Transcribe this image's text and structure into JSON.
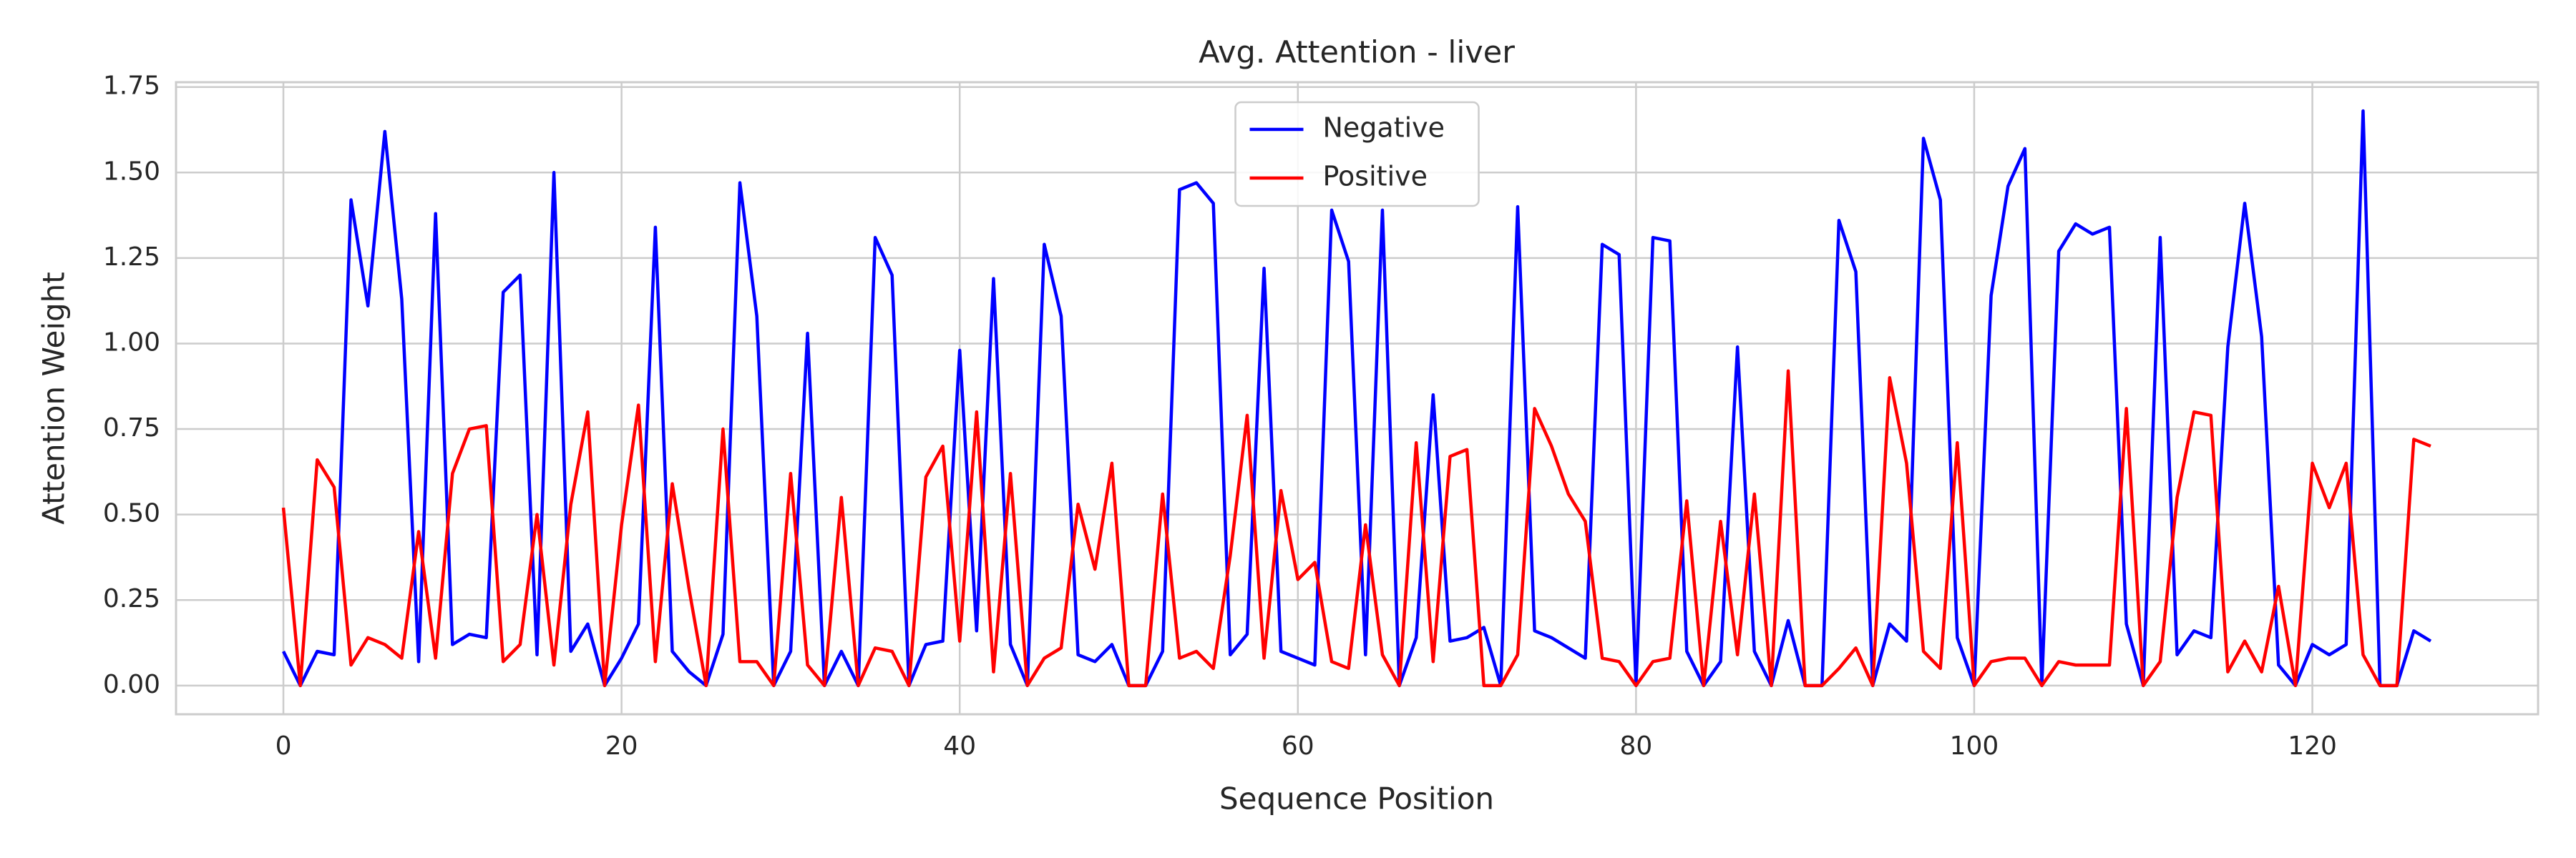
{
  "chart_data": {
    "type": "line",
    "title": "Avg. Attention - liver",
    "xlabel": "Sequence Position",
    "ylabel": "Attention Weight",
    "x": [
      0,
      1,
      2,
      3,
      4,
      5,
      6,
      7,
      8,
      9,
      10,
      11,
      12,
      13,
      14,
      15,
      16,
      17,
      18,
      19,
      20,
      21,
      22,
      23,
      24,
      25,
      26,
      27,
      28,
      29,
      30,
      31,
      32,
      33,
      34,
      35,
      36,
      37,
      38,
      39,
      40,
      41,
      42,
      43,
      44,
      45,
      46,
      47,
      48,
      49,
      50,
      51,
      52,
      53,
      54,
      55,
      56,
      57,
      58,
      59,
      60,
      61,
      62,
      63,
      64,
      65,
      66,
      67,
      68,
      69,
      70,
      71,
      72,
      73,
      74,
      75,
      76,
      77,
      78,
      79,
      80,
      81,
      82,
      83,
      84,
      85,
      86,
      87,
      88,
      89,
      90,
      91,
      92,
      93,
      94,
      95,
      96,
      97,
      98,
      99,
      100,
      101,
      102,
      103,
      104,
      105,
      106,
      107,
      108,
      109,
      110,
      111,
      112,
      113,
      114,
      115,
      116,
      117,
      118,
      119,
      120,
      121,
      122,
      123,
      124,
      125,
      126,
      127
    ],
    "series": [
      {
        "name": "Negative",
        "color": "#0000ff",
        "values": [
          0.1,
          0.0,
          0.1,
          0.09,
          1.42,
          1.11,
          1.62,
          1.13,
          0.07,
          1.38,
          0.12,
          0.15,
          0.14,
          1.15,
          1.2,
          0.09,
          1.5,
          0.1,
          0.18,
          0.0,
          0.08,
          0.18,
          1.34,
          0.1,
          0.04,
          0.0,
          0.15,
          1.47,
          1.08,
          0.0,
          0.1,
          1.03,
          0.0,
          0.1,
          0.0,
          1.31,
          1.2,
          0.0,
          0.12,
          0.13,
          0.98,
          0.16,
          1.19,
          0.12,
          0.0,
          1.29,
          1.08,
          0.09,
          0.07,
          0.12,
          0.0,
          0.0,
          0.1,
          1.45,
          1.47,
          1.41,
          0.09,
          0.15,
          1.22,
          0.1,
          0.08,
          0.06,
          1.39,
          1.24,
          0.09,
          1.39,
          0.0,
          0.14,
          0.85,
          0.13,
          0.14,
          0.17,
          0.0,
          1.4,
          0.16,
          0.14,
          0.11,
          0.08,
          1.29,
          1.26,
          0.0,
          1.31,
          1.3,
          0.1,
          0.0,
          0.07,
          0.99,
          0.1,
          0.0,
          0.19,
          0.0,
          0.0,
          1.36,
          1.21,
          0.0,
          0.18,
          0.13,
          1.6,
          1.42,
          0.14,
          0.0,
          1.14,
          1.46,
          1.57,
          0.0,
          1.27,
          1.35,
          1.32,
          1.34,
          0.18,
          0.0,
          1.31,
          0.09,
          0.16,
          0.14,
          0.99,
          1.41,
          1.02,
          0.06,
          0.0,
          0.12,
          0.09,
          0.12,
          1.68,
          0.0,
          0.0,
          0.16,
          0.13
        ]
      },
      {
        "name": "Positive",
        "color": "#ff0000",
        "values": [
          0.52,
          0.0,
          0.66,
          0.58,
          0.06,
          0.14,
          0.12,
          0.08,
          0.45,
          0.08,
          0.62,
          0.75,
          0.76,
          0.07,
          0.12,
          0.5,
          0.06,
          0.53,
          0.8,
          0.0,
          0.47,
          0.82,
          0.07,
          0.59,
          0.28,
          0.0,
          0.75,
          0.07,
          0.07,
          0.0,
          0.62,
          0.06,
          0.0,
          0.55,
          0.0,
          0.11,
          0.1,
          0.0,
          0.61,
          0.7,
          0.13,
          0.8,
          0.04,
          0.62,
          0.0,
          0.08,
          0.11,
          0.53,
          0.34,
          0.65,
          0.0,
          0.0,
          0.56,
          0.08,
          0.1,
          0.05,
          0.38,
          0.79,
          0.08,
          0.57,
          0.31,
          0.36,
          0.07,
          0.05,
          0.47,
          0.09,
          0.0,
          0.71,
          0.07,
          0.67,
          0.69,
          0.0,
          0.0,
          0.09,
          0.81,
          0.7,
          0.56,
          0.48,
          0.08,
          0.07,
          0.0,
          0.07,
          0.08,
          0.54,
          0.0,
          0.48,
          0.09,
          0.56,
          0.0,
          0.92,
          0.0,
          0.0,
          0.05,
          0.11,
          0.0,
          0.9,
          0.65,
          0.1,
          0.05,
          0.71,
          0.0,
          0.07,
          0.08,
          0.08,
          0.0,
          0.07,
          0.06,
          0.06,
          0.06,
          0.81,
          0.0,
          0.07,
          0.55,
          0.8,
          0.79,
          0.04,
          0.13,
          0.04,
          0.29,
          0.0,
          0.65,
          0.52,
          0.65,
          0.09,
          0.0,
          0.0,
          0.72,
          0.7
        ]
      }
    ],
    "xlim": [
      -6.35,
      133.35
    ],
    "xticks": [
      0,
      20,
      40,
      60,
      80,
      100,
      120
    ],
    "ylim": [
      -0.084,
      1.764
    ],
    "yticks": [
      {
        "value": 0,
        "label": "0.00"
      },
      {
        "value": 0.25,
        "label": "0.25"
      },
      {
        "value": 0.5,
        "label": "0.50"
      },
      {
        "value": 0.75,
        "label": "0.75"
      },
      {
        "value": 1,
        "label": "1.00"
      },
      {
        "value": 1.25,
        "label": "1.25"
      },
      {
        "value": 1.5,
        "label": "1.50"
      },
      {
        "value": 1.75,
        "label": "1.75"
      }
    ],
    "grid": true,
    "legend": "upper center"
  }
}
